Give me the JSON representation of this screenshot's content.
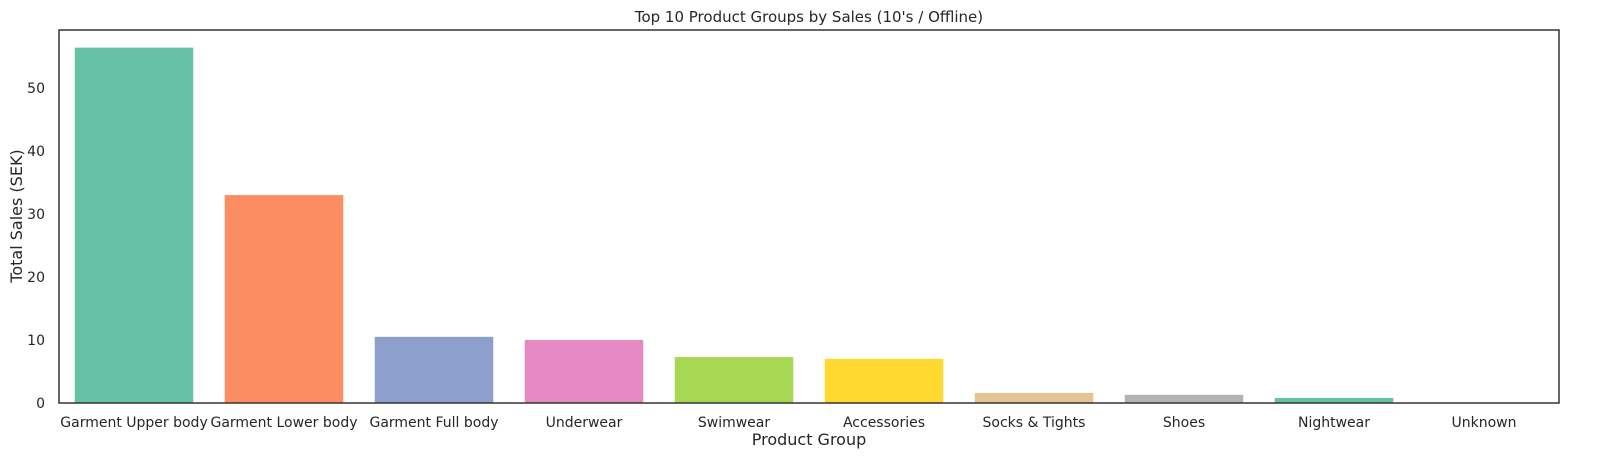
{
  "chart_data": {
    "type": "bar",
    "title": "Top 10 Product Groups by Sales (10's / Offline)",
    "xlabel": "Product Group",
    "ylabel": "Total Sales (SEK)",
    "categories": [
      "Garment Upper body",
      "Garment Lower body",
      "Garment Full body",
      "Underwear",
      "Swimwear",
      "Accessories",
      "Socks & Tights",
      "Shoes",
      "Nightwear",
      "Unknown"
    ],
    "values": [
      56.4,
      33.0,
      10.5,
      10.0,
      7.3,
      7.0,
      1.6,
      1.3,
      0.8,
      0.02
    ],
    "ylim": [
      0,
      59.2
    ],
    "yticks": [
      0,
      10,
      20,
      30,
      40,
      50
    ],
    "colors": [
      "#66c2a5",
      "#fc8d62",
      "#8da0cb",
      "#e78ac3",
      "#a6d854",
      "#ffd92f",
      "#e5c494",
      "#b3b3b3",
      "#66c2a5",
      "#fc8d62"
    ],
    "grid": false,
    "legend": "none"
  }
}
